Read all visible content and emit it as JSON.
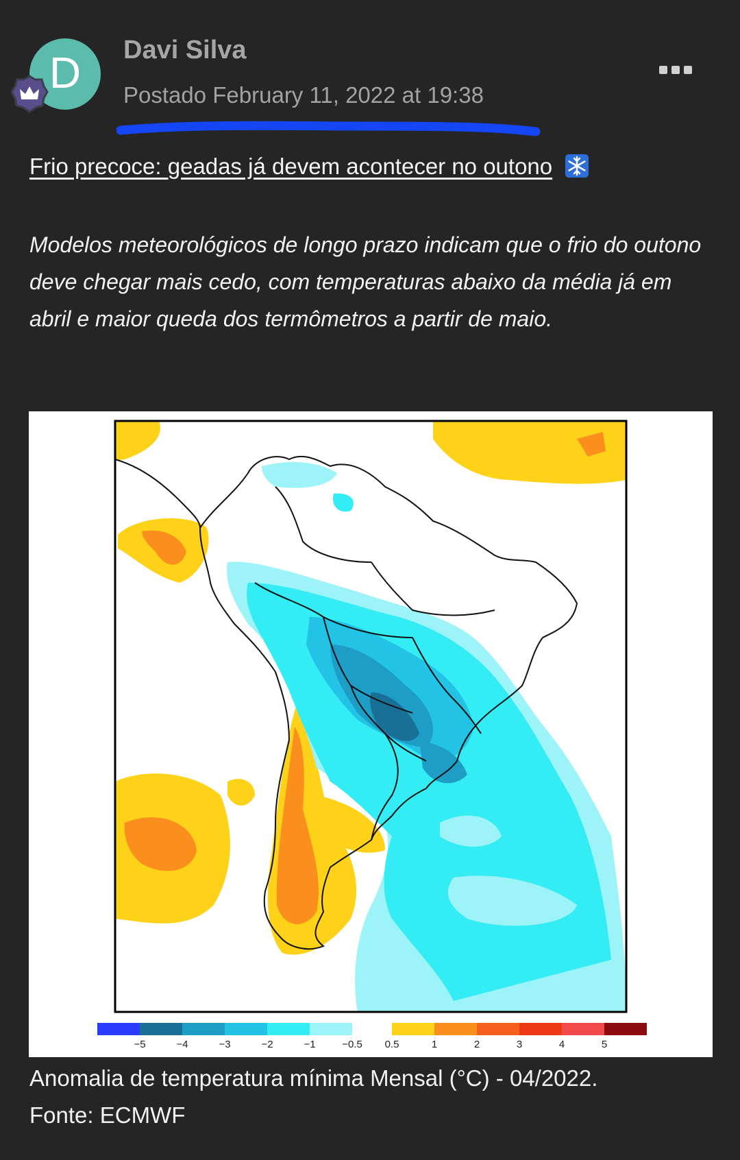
{
  "post": {
    "avatar_initial": "D",
    "author": "Davi Silva",
    "posted": "Postado February 11, 2022 at 19:38",
    "more_icon": "more-horizontal-icon",
    "badge_icon": "crown-icon"
  },
  "content": {
    "headline": "Frio precoce: geadas já devem acontecer no outono",
    "headline_icon": "snowflake-icon",
    "lead": "Modelos meteorológicos de longo prazo indicam que o frio do outono deve chegar mais cedo, com temperaturas abaixo da média já em abril e maior queda dos termômetros a partir de maio.",
    "caption_line1": "Anomalia de temperatura mínima Mensal (°C) - 04/2022.",
    "caption_line2": "Fonte: ECMWF"
  },
  "map": {
    "colorbar": {
      "ticks": [
        "−5",
        "−4",
        "−3",
        "−2",
        "−1",
        "−0.5",
        "0.5",
        "1",
        "2",
        "3",
        "4",
        "5"
      ],
      "cold_colors": [
        "#2a3cff",
        "#1a6f96",
        "#1e9ec6",
        "#22c3e4",
        "#33ecf4",
        "#9df4f8"
      ],
      "warm_colors": [
        "#ffd21a",
        "#fb8f1e",
        "#f5611c",
        "#ec3a17",
        "#f24a4a",
        "#8c0b10"
      ]
    }
  },
  "colors": {
    "background": "#252526",
    "avatar": "#5bbcae",
    "underline_mark": "#1446f5"
  }
}
